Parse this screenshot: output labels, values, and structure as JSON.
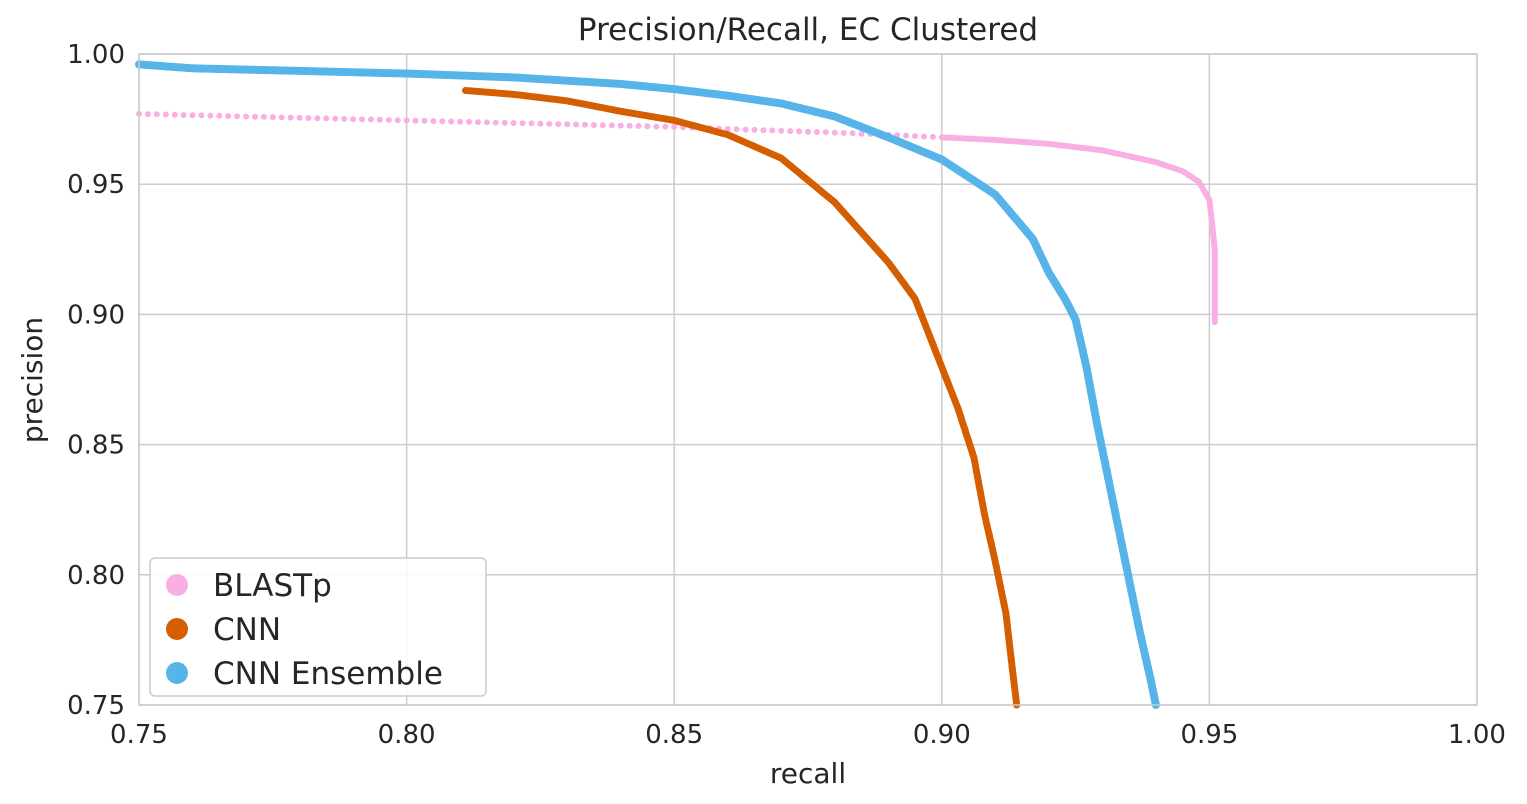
{
  "chart_data": {
    "type": "scatter",
    "title": "Precision/Recall, EC Clustered",
    "xlabel": "recall",
    "ylabel": "precision",
    "xlim": [
      0.75,
      1.0
    ],
    "ylim": [
      0.75,
      1.0
    ],
    "xticks": [
      0.75,
      0.8,
      0.85,
      0.9,
      0.95,
      1.0
    ],
    "yticks": [
      0.75,
      0.8,
      0.85,
      0.9,
      0.95,
      1.0
    ],
    "xtick_labels": [
      "0.75",
      "0.80",
      "0.85",
      "0.90",
      "0.95",
      "1.00"
    ],
    "ytick_labels": [
      "0.75",
      "0.80",
      "0.85",
      "0.90",
      "0.95",
      "1.00"
    ],
    "grid": true,
    "legend_position": "bottom-left",
    "series": [
      {
        "name": "BLASTp",
        "color": "#f9aee4",
        "points": [
          [
            0.75,
            0.977
          ],
          [
            0.76,
            0.9765
          ],
          [
            0.77,
            0.976
          ],
          [
            0.78,
            0.9755
          ],
          [
            0.79,
            0.975
          ],
          [
            0.8,
            0.9745
          ],
          [
            0.81,
            0.974
          ],
          [
            0.82,
            0.9735
          ],
          [
            0.83,
            0.973
          ],
          [
            0.84,
            0.9725
          ],
          [
            0.85,
            0.972
          ],
          [
            0.86,
            0.9712
          ],
          [
            0.87,
            0.9705
          ],
          [
            0.88,
            0.9698
          ],
          [
            0.89,
            0.969
          ],
          [
            0.9,
            0.968
          ],
          [
            0.91,
            0.967
          ],
          [
            0.92,
            0.9655
          ],
          [
            0.93,
            0.963
          ],
          [
            0.94,
            0.9585
          ],
          [
            0.945,
            0.955
          ],
          [
            0.948,
            0.951
          ],
          [
            0.95,
            0.944
          ],
          [
            0.9505,
            0.935
          ],
          [
            0.951,
            0.925
          ],
          [
            0.951,
            0.915
          ],
          [
            0.951,
            0.905
          ],
          [
            0.951,
            0.897
          ]
        ]
      },
      {
        "name": "CNN",
        "color": "#d55e00",
        "points": [
          [
            0.811,
            0.986
          ],
          [
            0.82,
            0.9845
          ],
          [
            0.83,
            0.982
          ],
          [
            0.84,
            0.978
          ],
          [
            0.85,
            0.9745
          ],
          [
            0.86,
            0.969
          ],
          [
            0.87,
            0.96
          ],
          [
            0.88,
            0.943
          ],
          [
            0.89,
            0.92
          ],
          [
            0.895,
            0.906
          ],
          [
            0.899,
            0.885
          ],
          [
            0.903,
            0.864
          ],
          [
            0.906,
            0.845
          ],
          [
            0.908,
            0.823
          ],
          [
            0.91,
            0.805
          ],
          [
            0.912,
            0.785
          ],
          [
            0.913,
            0.767
          ],
          [
            0.914,
            0.75
          ]
        ]
      },
      {
        "name": "CNN Ensemble",
        "color": "#56b4e9",
        "points": [
          [
            0.75,
            0.996
          ],
          [
            0.76,
            0.9945
          ],
          [
            0.78,
            0.9935
          ],
          [
            0.8,
            0.9925
          ],
          [
            0.82,
            0.991
          ],
          [
            0.84,
            0.9885
          ],
          [
            0.85,
            0.9865
          ],
          [
            0.86,
            0.984
          ],
          [
            0.87,
            0.981
          ],
          [
            0.88,
            0.976
          ],
          [
            0.89,
            0.968
          ],
          [
            0.9,
            0.9595
          ],
          [
            0.91,
            0.946
          ],
          [
            0.917,
            0.929
          ],
          [
            0.92,
            0.916
          ],
          [
            0.923,
            0.906
          ],
          [
            0.925,
            0.898
          ],
          [
            0.927,
            0.88
          ],
          [
            0.929,
            0.858
          ],
          [
            0.931,
            0.838
          ],
          [
            0.933,
            0.818
          ],
          [
            0.935,
            0.798
          ],
          [
            0.937,
            0.778
          ],
          [
            0.939,
            0.76
          ],
          [
            0.94,
            0.75
          ]
        ]
      }
    ]
  }
}
